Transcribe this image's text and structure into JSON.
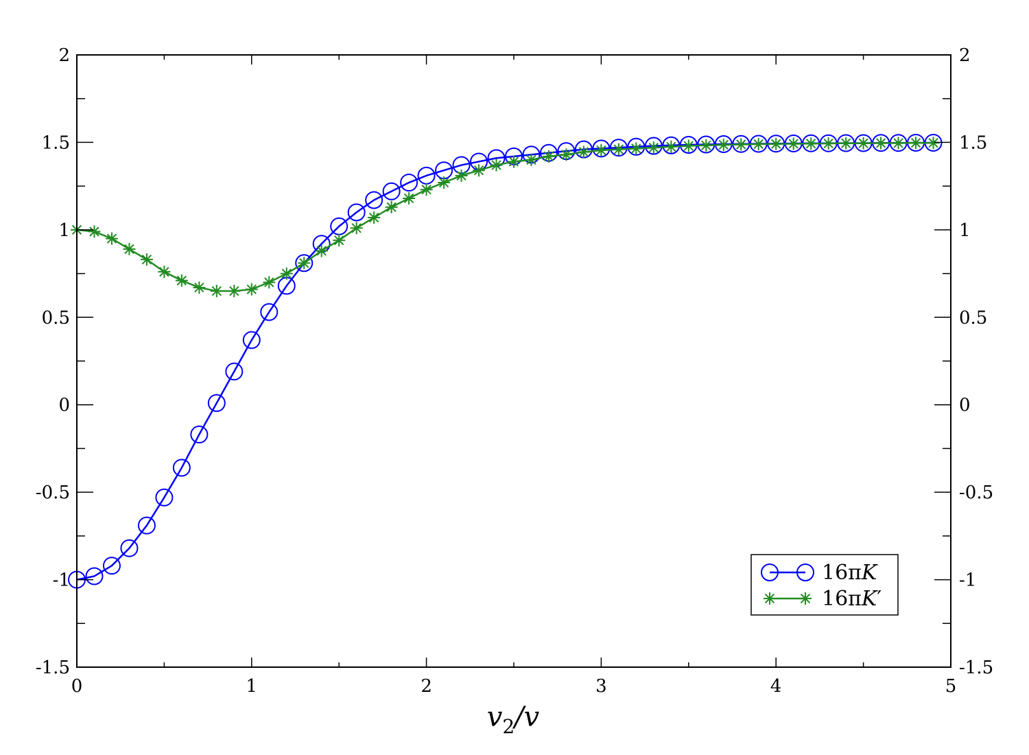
{
  "chart_data": {
    "type": "line",
    "xlabel": {
      "base": "v",
      "sub": "2",
      "tail": "/v"
    },
    "ylabel": "",
    "xlim": [
      0,
      5
    ],
    "ylim": [
      -1.5,
      2
    ],
    "x_ticks": [
      0,
      1,
      2,
      3,
      4,
      5
    ],
    "x_tick_labels": [
      "0",
      "1",
      "2",
      "3",
      "4",
      "5"
    ],
    "y_ticks": [
      -1.5,
      -1,
      -0.5,
      0,
      0.5,
      1,
      1.5,
      2
    ],
    "y_tick_labels": [
      "-1.5",
      "-1",
      "-0.5",
      "0",
      "0.5",
      "1",
      "1.5",
      "2"
    ],
    "right_axis_mirrors_left": true,
    "grid": false,
    "legend_position": "bottom-right",
    "x": [
      0,
      0.1,
      0.2,
      0.3,
      0.4,
      0.5,
      0.6,
      0.7,
      0.8,
      0.9,
      1.0,
      1.1,
      1.2,
      1.3,
      1.4,
      1.5,
      1.6,
      1.7,
      1.8,
      1.9,
      2.0,
      2.1,
      2.2,
      2.3,
      2.4,
      2.5,
      2.6,
      2.7,
      2.8,
      2.9,
      3.0,
      3.1,
      3.2,
      3.3,
      3.4,
      3.5,
      3.6,
      3.7,
      3.8,
      3.9,
      4.0,
      4.1,
      4.2,
      4.3,
      4.4,
      4.5,
      4.6,
      4.7,
      4.8,
      4.9
    ],
    "series": [
      {
        "name": {
          "prefix": "16π",
          "var": "K",
          "prime": ""
        },
        "color": "#0000ff",
        "marker": "circle",
        "values": [
          -1.0,
          -0.98,
          -0.92,
          -0.82,
          -0.69,
          -0.53,
          -0.36,
          -0.17,
          0.01,
          0.19,
          0.37,
          0.53,
          0.68,
          0.81,
          0.92,
          1.02,
          1.1,
          1.17,
          1.22,
          1.27,
          1.31,
          1.34,
          1.37,
          1.39,
          1.41,
          1.42,
          1.43,
          1.44,
          1.45,
          1.46,
          1.465,
          1.47,
          1.475,
          1.48,
          1.483,
          1.486,
          1.488,
          1.49,
          1.491,
          1.492,
          1.493,
          1.494,
          1.495,
          1.495,
          1.496,
          1.496,
          1.497,
          1.497,
          1.498,
          1.498
        ]
      },
      {
        "name": {
          "prefix": "16π",
          "var": "K",
          "prime": "′"
        },
        "color": "#228b22",
        "marker": "star",
        "values": [
          1.0,
          0.99,
          0.95,
          0.89,
          0.83,
          0.76,
          0.71,
          0.67,
          0.65,
          0.65,
          0.66,
          0.7,
          0.75,
          0.81,
          0.88,
          0.94,
          1.01,
          1.07,
          1.13,
          1.18,
          1.23,
          1.27,
          1.31,
          1.34,
          1.37,
          1.39,
          1.4,
          1.42,
          1.43,
          1.445,
          1.455,
          1.46,
          1.465,
          1.47,
          1.475,
          1.48,
          1.483,
          1.486,
          1.488,
          1.49,
          1.491,
          1.492,
          1.493,
          1.494,
          1.495,
          1.495,
          1.496,
          1.496,
          1.497,
          1.497
        ]
      }
    ]
  }
}
